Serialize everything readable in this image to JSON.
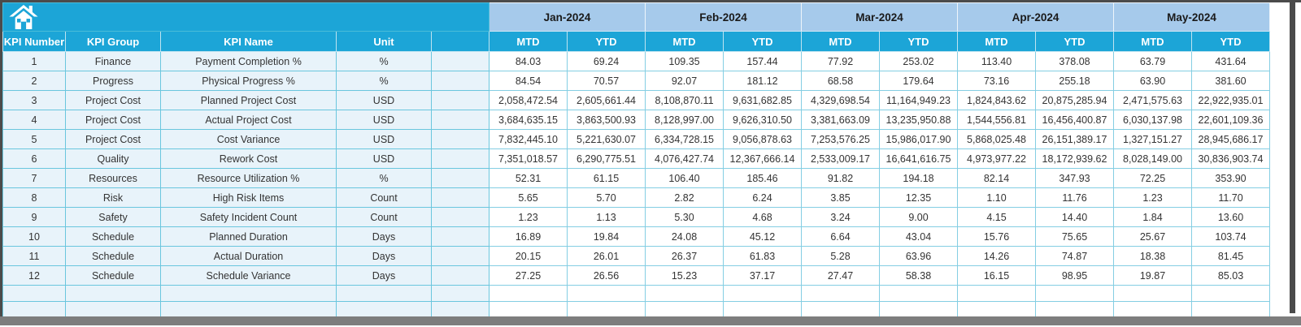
{
  "icons": {
    "home": "home-icon"
  },
  "colors": {
    "header_cyan": "#1CA5D7",
    "month_header_blue": "#A6CAEB",
    "row_tint_blue": "#E8F3FA",
    "grid_cyan": "#74C9E0",
    "frame_gray": "#7D7D7D",
    "edge_dark_gray": "#4B4B4B",
    "header_text": "#FFFFFF",
    "data_text": "#333333"
  },
  "table": {
    "column_headers": [
      "KPI Number",
      "KPI Group",
      "KPI Name",
      "Unit"
    ],
    "month_headers": [
      "Jan-2024",
      "Feb-2024",
      "Mar-2024",
      "Apr-2024",
      "May-2024"
    ],
    "period_subheaders": [
      "MTD",
      "YTD"
    ],
    "rows": [
      {
        "kpi_number": "1",
        "kpi_group": "Finance",
        "kpi_name": "Payment Completion %",
        "unit": "%",
        "values": [
          "84.03",
          "69.24",
          "109.35",
          "157.44",
          "77.92",
          "253.02",
          "113.40",
          "378.08",
          "63.79",
          "431.64"
        ]
      },
      {
        "kpi_number": "2",
        "kpi_group": "Progress",
        "kpi_name": "Physical Progress %",
        "unit": "%",
        "values": [
          "84.54",
          "70.57",
          "92.07",
          "181.12",
          "68.58",
          "179.64",
          "73.16",
          "255.18",
          "63.90",
          "381.60"
        ]
      },
      {
        "kpi_number": "3",
        "kpi_group": "Project Cost",
        "kpi_name": "Planned Project Cost",
        "unit": "USD",
        "values": [
          "2,058,472.54",
          "2,605,661.44",
          "8,108,870.11",
          "9,631,682.85",
          "4,329,698.54",
          "11,164,949.23",
          "1,824,843.62",
          "20,875,285.94",
          "2,471,575.63",
          "22,922,935.01"
        ]
      },
      {
        "kpi_number": "4",
        "kpi_group": "Project Cost",
        "kpi_name": "Actual Project Cost",
        "unit": "USD",
        "values": [
          "3,684,635.15",
          "3,863,500.93",
          "8,128,997.00",
          "9,626,310.50",
          "3,381,663.09",
          "13,235,950.88",
          "1,544,556.81",
          "16,456,400.87",
          "6,030,137.98",
          "22,601,109.36"
        ]
      },
      {
        "kpi_number": "5",
        "kpi_group": "Project Cost",
        "kpi_name": "Cost Variance",
        "unit": "USD",
        "values": [
          "7,832,445.10",
          "5,221,630.07",
          "6,334,728.15",
          "9,056,878.63",
          "7,253,576.25",
          "15,986,017.90",
          "5,868,025.48",
          "26,151,389.17",
          "1,327,151.27",
          "28,945,686.17"
        ]
      },
      {
        "kpi_number": "6",
        "kpi_group": "Quality",
        "kpi_name": "Rework Cost",
        "unit": "USD",
        "values": [
          "7,351,018.57",
          "6,290,775.51",
          "4,076,427.74",
          "12,367,666.14",
          "2,533,009.17",
          "16,641,616.75",
          "4,973,977.22",
          "18,172,939.62",
          "8,028,149.00",
          "30,836,903.74"
        ]
      },
      {
        "kpi_number": "7",
        "kpi_group": "Resources",
        "kpi_name": "Resource Utilization %",
        "unit": "%",
        "values": [
          "52.31",
          "61.15",
          "106.40",
          "185.46",
          "91.82",
          "194.18",
          "82.14",
          "347.93",
          "72.25",
          "353.90"
        ]
      },
      {
        "kpi_number": "8",
        "kpi_group": "Risk",
        "kpi_name": "High Risk Items",
        "unit": "Count",
        "values": [
          "5.65",
          "5.70",
          "2.82",
          "6.24",
          "3.85",
          "12.35",
          "1.10",
          "11.76",
          "1.23",
          "11.70"
        ]
      },
      {
        "kpi_number": "9",
        "kpi_group": "Safety",
        "kpi_name": "Safety Incident Count",
        "unit": "Count",
        "values": [
          "1.23",
          "1.13",
          "5.30",
          "4.68",
          "3.24",
          "9.00",
          "4.15",
          "14.40",
          "1.84",
          "13.60"
        ]
      },
      {
        "kpi_number": "10",
        "kpi_group": "Schedule",
        "kpi_name": "Planned Duration",
        "unit": "Days",
        "values": [
          "16.89",
          "19.84",
          "24.08",
          "45.12",
          "6.64",
          "43.04",
          "15.76",
          "75.65",
          "25.67",
          "103.74"
        ]
      },
      {
        "kpi_number": "11",
        "kpi_group": "Schedule",
        "kpi_name": "Actual Duration",
        "unit": "Days",
        "values": [
          "20.15",
          "26.01",
          "26.37",
          "61.83",
          "5.28",
          "63.96",
          "14.26",
          "74.87",
          "18.38",
          "81.45"
        ]
      },
      {
        "kpi_number": "12",
        "kpi_group": "Schedule",
        "kpi_name": "Schedule Variance",
        "unit": "Days",
        "values": [
          "27.25",
          "26.56",
          "15.23",
          "37.17",
          "27.47",
          "58.38",
          "16.15",
          "98.95",
          "19.87",
          "85.03"
        ]
      }
    ],
    "empty_row_count": 2
  }
}
